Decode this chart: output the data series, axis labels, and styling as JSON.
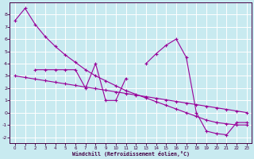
{
  "bg_color": "#c8eaf0",
  "grid_color": "#ffffff",
  "line_color": "#990099",
  "xlabel": "Windchill (Refroidissement éolien,°C)",
  "ylim": [
    -2.5,
    9.0
  ],
  "xlim": [
    -0.5,
    23.5
  ],
  "yticks": [
    -2,
    -1,
    0,
    1,
    2,
    3,
    4,
    5,
    6,
    7,
    8
  ],
  "xticks": [
    0,
    1,
    2,
    3,
    4,
    5,
    6,
    7,
    8,
    9,
    10,
    11,
    12,
    13,
    14,
    15,
    16,
    17,
    18,
    19,
    20,
    21,
    22,
    23
  ],
  "line1_x": [
    0,
    1,
    2,
    3,
    4,
    5,
    6,
    7,
    8,
    9,
    10,
    11,
    12,
    13,
    14,
    15,
    16,
    17,
    18,
    19,
    20,
    21,
    22,
    23
  ],
  "line1_y": [
    7.5,
    8.5,
    7.2,
    6.2,
    5.4,
    4.7,
    4.1,
    3.5,
    3.0,
    2.6,
    2.2,
    1.8,
    1.5,
    1.2,
    0.9,
    0.6,
    0.3,
    0.0,
    -0.3,
    -0.6,
    -0.8,
    -0.9,
    -1.0,
    -1.0
  ],
  "line2_x": [
    2,
    3,
    4,
    5,
    6,
    7,
    8,
    9,
    10,
    11,
    13,
    14,
    15,
    16,
    17,
    18,
    19,
    20,
    21,
    22,
    23
  ],
  "line2_y": [
    3.5,
    3.5,
    3.5,
    3.5,
    3.5,
    2.0,
    4.0,
    1.0,
    1.0,
    2.8,
    4.0,
    4.8,
    5.5,
    6.0,
    4.5,
    0.0,
    -1.5,
    -1.7,
    -1.8,
    -0.8,
    -0.8
  ],
  "line2_break_after": 10,
  "line3_x": [
    0,
    1,
    2,
    3,
    4,
    5,
    6,
    7,
    8,
    9,
    10,
    11,
    12,
    13,
    14,
    15,
    16,
    17,
    18,
    19,
    20,
    21,
    22,
    23
  ],
  "line3_y": [
    3.0,
    2.87,
    2.74,
    2.61,
    2.48,
    2.35,
    2.22,
    2.09,
    1.96,
    1.83,
    1.7,
    1.57,
    1.44,
    1.31,
    1.18,
    1.05,
    0.92,
    0.79,
    0.66,
    0.53,
    0.4,
    0.27,
    0.14,
    0.01
  ]
}
